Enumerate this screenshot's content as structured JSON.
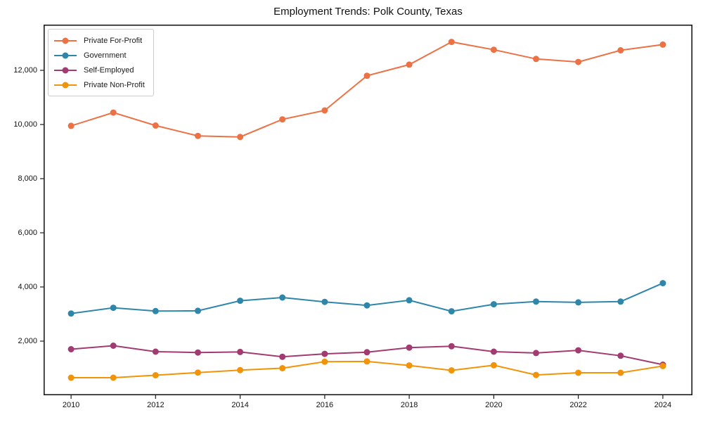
{
  "chart_data": {
    "type": "line",
    "title": "Employment Trends: Polk County, Texas",
    "x": [
      2010,
      2011,
      2012,
      2013,
      2014,
      2015,
      2016,
      2017,
      2018,
      2019,
      2020,
      2021,
      2022,
      2023,
      2024
    ],
    "series": [
      {
        "name": "Private For-Profit",
        "color": "#ec7145",
        "values": [
          9950,
          10440,
          9960,
          9580,
          9540,
          10190,
          10520,
          11800,
          12210,
          13050,
          12760,
          12420,
          12310,
          12740,
          12950
        ]
      },
      {
        "name": "Government",
        "color": "#2e86ab",
        "values": [
          3020,
          3230,
          3110,
          3120,
          3490,
          3610,
          3450,
          3320,
          3510,
          3100,
          3360,
          3460,
          3430,
          3460,
          4140
        ]
      },
      {
        "name": "Self-Employed",
        "color": "#a23b72",
        "values": [
          1700,
          1830,
          1610,
          1580,
          1600,
          1420,
          1530,
          1590,
          1760,
          1810,
          1610,
          1560,
          1660,
          1460,
          1130
        ]
      },
      {
        "name": "Private Non-Profit",
        "color": "#f1940a",
        "values": [
          650,
          650,
          740,
          840,
          930,
          1000,
          1240,
          1250,
          1100,
          920,
          1110,
          750,
          830,
          830,
          1080
        ]
      }
    ],
    "xticks": [
      2010,
      2012,
      2014,
      2016,
      2018,
      2020,
      2022,
      2024
    ],
    "xtick_labels": [
      "2010",
      "2012",
      "2014",
      "2016",
      "2018",
      "2020",
      "2022",
      "2024"
    ],
    "yticks": [
      2000,
      4000,
      6000,
      8000,
      10000,
      12000
    ],
    "ytick_labels": [
      "2,000",
      "4,000",
      "6,000",
      "8,000",
      "10,000",
      "12,000"
    ],
    "xlim": [
      2009.35,
      2024.7
    ],
    "ylim": [
      0,
      13688
    ],
    "xlabel": "",
    "ylabel": "",
    "grid": false,
    "legend_position": "upper-left",
    "marker": "circle",
    "spine_color": "#1a1a1a"
  }
}
